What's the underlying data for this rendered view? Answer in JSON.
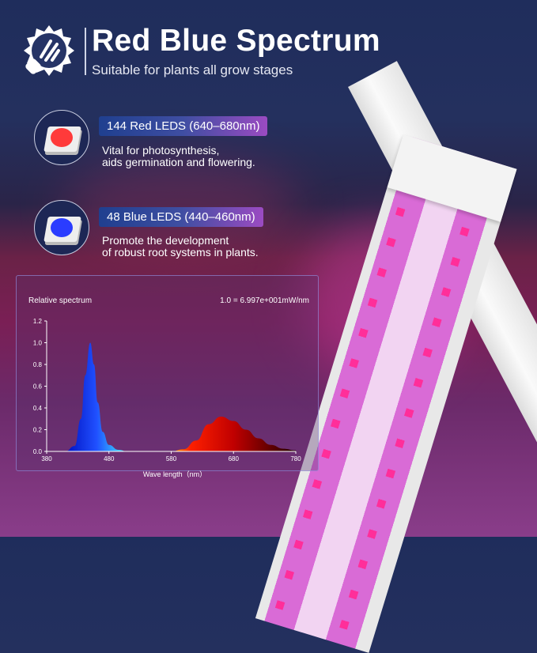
{
  "header": {
    "title": "Red Blue Spectrum",
    "subtitle": "Suitable for plants all grow stages",
    "logo_icon": "sun-bulb-icon"
  },
  "features": [
    {
      "label": "144 Red LEDS (640–680nm)",
      "description_line1": "Vital for photosynthesis,",
      "description_line2": "aids germination and flowering.",
      "led_color": "#ff3a3a"
    },
    {
      "label": "48 Blue LEDS (440–460nm)",
      "description_line1": "Promote the development",
      "description_line2": "of robust root systems in plants.",
      "led_color": "#2a3cff"
    }
  ],
  "chart_data": {
    "type": "area",
    "title": "Relative spectrum",
    "annotation": "1.0 = 6.997e+001mW/nm",
    "xlabel": "Wave length（nm）",
    "ylabel": "",
    "xlim": [
      380,
      780
    ],
    "ylim": [
      0,
      1.2
    ],
    "xticks": [
      "380",
      "480",
      "580",
      "680",
      "780"
    ],
    "yticks": [
      "0.0",
      "0.2",
      "0.4",
      "0.6",
      "0.8",
      "1.0",
      "1.2"
    ],
    "grid": false,
    "series": [
      {
        "color": "#1a2cff",
        "x": [
          410,
          425,
          435,
          442,
          450,
          456,
          462,
          470,
          480,
          495,
          510
        ],
        "y": [
          0,
          0.05,
          0.3,
          0.7,
          1.0,
          0.8,
          0.45,
          0.18,
          0.06,
          0.015,
          0
        ]
      },
      {
        "color": "#e01010",
        "x": [
          580,
          600,
          620,
          640,
          660,
          680,
          700,
          720,
          740,
          760,
          780
        ],
        "y": [
          0,
          0.02,
          0.1,
          0.25,
          0.32,
          0.28,
          0.2,
          0.12,
          0.06,
          0.025,
          0.01
        ]
      }
    ]
  }
}
